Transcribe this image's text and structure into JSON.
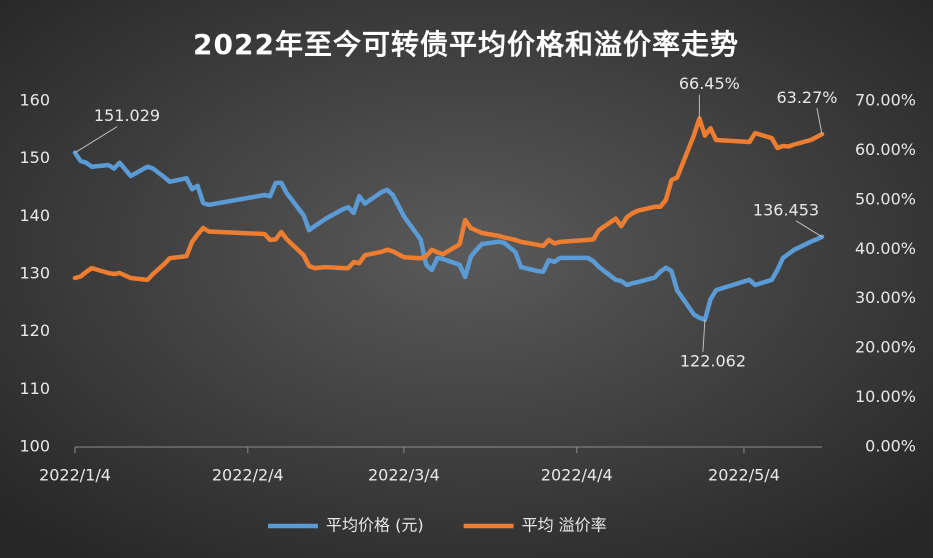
{
  "chart_data": {
    "type": "line",
    "title": "2022年至今可转债平均价格和溢价率走势",
    "x": [
      "2022/1/4",
      "2022/1/5",
      "2022/1/6",
      "2022/1/7",
      "2022/1/10",
      "2022/1/11",
      "2022/1/12",
      "2022/1/14",
      "2022/1/17",
      "2022/1/18",
      "2022/1/20",
      "2022/1/21",
      "2022/1/24",
      "2022/1/25",
      "2022/1/26",
      "2022/1/27",
      "2022/1/28",
      "2022/2/7",
      "2022/2/8",
      "2022/2/9",
      "2022/2/10",
      "2022/2/11",
      "2022/2/14",
      "2022/2/15",
      "2022/2/16",
      "2022/2/18",
      "2022/2/21",
      "2022/2/22",
      "2022/2/23",
      "2022/2/24",
      "2022/2/25",
      "2022/2/28",
      "2022/3/1",
      "2022/3/2",
      "2022/3/4",
      "2022/3/7",
      "2022/3/8",
      "2022/3/9",
      "2022/3/10",
      "2022/3/11",
      "2022/3/14",
      "2022/3/15",
      "2022/3/16",
      "2022/3/17",
      "2022/3/18",
      "2022/3/21",
      "2022/3/22",
      "2022/3/24",
      "2022/3/25",
      "2022/3/28",
      "2022/3/29",
      "2022/3/30",
      "2022/3/31",
      "2022/4/1",
      "2022/4/6",
      "2022/4/7",
      "2022/4/8",
      "2022/4/11",
      "2022/4/12",
      "2022/4/13",
      "2022/4/14",
      "2022/4/15",
      "2022/4/18",
      "2022/4/19",
      "2022/4/20",
      "2022/4/21",
      "2022/4/22",
      "2022/4/25",
      "2022/4/26",
      "2022/4/27",
      "2022/4/28",
      "2022/4/29",
      "2022/5/5",
      "2022/5/6",
      "2022/5/9",
      "2022/5/10",
      "2022/5/11",
      "2022/5/12",
      "2022/5/13",
      "2022/5/16",
      "2022/5/17",
      "2022/5/18"
    ],
    "xlim": [
      "2022/1/4",
      "2022/5/18"
    ],
    "xticks": [
      "2022/1/4",
      "2022/2/4",
      "2022/3/4",
      "2022/4/4",
      "2022/5/4"
    ],
    "ylim": [
      100,
      160
    ],
    "yticks": [
      100,
      110,
      120,
      130,
      140,
      150,
      160
    ],
    "y2lim": [
      0,
      70
    ],
    "y2ticks": [
      {
        "value": 0,
        "label": "0.00%"
      },
      {
        "value": 10,
        "label": "10.00%"
      },
      {
        "value": 20,
        "label": "20.00%"
      },
      {
        "value": 30,
        "label": "30.00%"
      },
      {
        "value": 40,
        "label": "40.00%"
      },
      {
        "value": 50,
        "label": "50.00%"
      },
      {
        "value": 60,
        "label": "60.00%"
      },
      {
        "value": 70,
        "label": "70.00%"
      }
    ],
    "legend": "bottom",
    "series": [
      {
        "name": "平均价格 (元)",
        "color": "#5b9bd5",
        "values": [
          151.029,
          149.6,
          149.3,
          148.6,
          148.9,
          148.3,
          149.3,
          147.0,
          148.6,
          148.3,
          146.8,
          146.0,
          146.6,
          144.7,
          145.3,
          142.3,
          142.0,
          143.7,
          143.5,
          145.8,
          145.8,
          144.0,
          140.2,
          137.6,
          138.3,
          139.6,
          141.2,
          141.6,
          140.6,
          143.5,
          142.2,
          144.2,
          144.6,
          143.7,
          140.0,
          136.0,
          131.6,
          130.7,
          132.8,
          132.6,
          131.6,
          129.5,
          133.0,
          134.2,
          135.2,
          135.6,
          135.4,
          133.8,
          131.2,
          130.5,
          130.4,
          132.4,
          132.1,
          132.8,
          132.8,
          132.2,
          131.2,
          129.0,
          128.8,
          128.1,
          128.4,
          128.6,
          129.4,
          130.4,
          131.1,
          130.5,
          127.2,
          123.0,
          122.4,
          122.062,
          125.6,
          127.2,
          129.0,
          128.1,
          129.0,
          130.7,
          132.8,
          133.5,
          134.2,
          135.6,
          136.0,
          136.453
        ],
        "value_labels": [
          "151.029",
          null,
          null,
          null,
          null,
          null,
          null,
          null,
          null,
          null,
          null,
          null,
          null,
          null,
          null,
          null,
          null,
          null,
          null,
          null,
          null,
          null,
          null,
          null,
          null,
          null,
          null,
          null,
          null,
          null,
          null,
          null,
          null,
          null,
          null,
          null,
          null,
          null,
          null,
          null,
          null,
          null,
          null,
          null,
          null,
          null,
          null,
          null,
          null,
          null,
          null,
          null,
          null,
          null,
          null,
          null,
          null,
          null,
          null,
          null,
          null,
          null,
          null,
          null,
          null,
          null,
          null,
          null,
          null,
          "122.062",
          null,
          null,
          null,
          null,
          null,
          null,
          null,
          null,
          null,
          null,
          null,
          "136.453"
        ]
      },
      {
        "name": "平均 溢价率",
        "color": "#ed7d31",
        "axis": "y2",
        "values": [
          34.2,
          34.5,
          35.4,
          36.2,
          35.2,
          35.0,
          35.2,
          34.2,
          33.8,
          35.0,
          37.0,
          38.2,
          38.6,
          41.5,
          43.0,
          44.3,
          43.6,
          43.1,
          41.9,
          42.0,
          43.5,
          42.0,
          38.8,
          36.6,
          36.2,
          36.4,
          36.2,
          36.2,
          37.4,
          37.2,
          38.8,
          39.5,
          39.9,
          39.6,
          38.4,
          38.2,
          38.6,
          39.9,
          39.4,
          39.0,
          41.0,
          45.9,
          44.3,
          43.8,
          43.3,
          42.7,
          42.4,
          41.9,
          41.5,
          40.9,
          40.7,
          41.9,
          41.2,
          41.5,
          41.9,
          42.0,
          43.9,
          46.2,
          44.7,
          46.5,
          47.3,
          47.8,
          48.6,
          48.6,
          50.0,
          54.0,
          54.5,
          63.0,
          66.45,
          63.0,
          64.5,
          62.1,
          61.7,
          63.5,
          62.5,
          60.5,
          60.9,
          60.8,
          61.2,
          62.1,
          62.7,
          63.27
        ],
        "value_labels": [
          null,
          null,
          null,
          null,
          null,
          null,
          null,
          null,
          null,
          null,
          null,
          null,
          null,
          null,
          null,
          null,
          null,
          null,
          null,
          null,
          null,
          null,
          null,
          null,
          null,
          null,
          null,
          null,
          null,
          null,
          null,
          null,
          null,
          null,
          null,
          null,
          null,
          null,
          null,
          null,
          null,
          null,
          null,
          null,
          null,
          null,
          null,
          null,
          null,
          null,
          null,
          null,
          null,
          null,
          null,
          null,
          null,
          null,
          null,
          null,
          null,
          null,
          null,
          null,
          null,
          null,
          null,
          null,
          "66.45%",
          null,
          null,
          null,
          null,
          null,
          null,
          null,
          null,
          null,
          null,
          null,
          null,
          "63.27%"
        ]
      }
    ]
  }
}
